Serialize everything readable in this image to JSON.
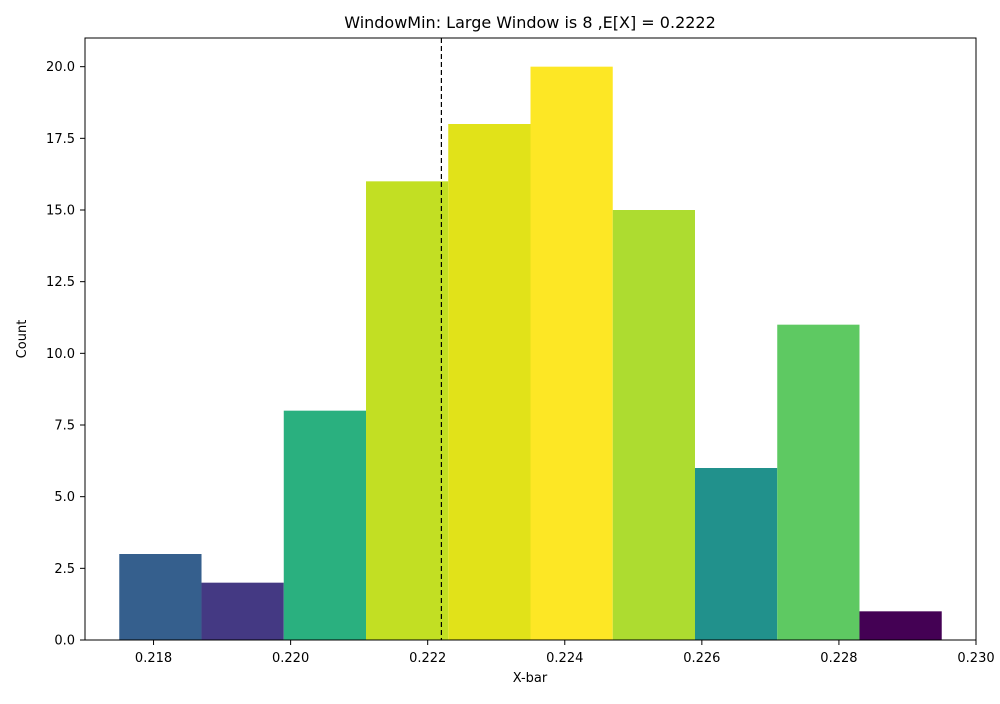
{
  "chart_data": {
    "type": "bar",
    "title": "WindowMin: Large Window is 8 ,E[X] = 0.2222",
    "xlabel": "X-bar",
    "ylabel": "Count",
    "xlim": [
      0.217,
      0.23
    ],
    "ylim": [
      0,
      21
    ],
    "x_ticks": [
      "0.218",
      "0.220",
      "0.222",
      "0.224",
      "0.226",
      "0.228",
      "0.230"
    ],
    "y_ticks": [
      "0.0",
      "2.5",
      "5.0",
      "7.5",
      "10.0",
      "12.5",
      "15.0",
      "17.5",
      "20.0"
    ],
    "bin_edges": [
      0.2175,
      0.2187,
      0.2199,
      0.2211,
      0.2223,
      0.2235,
      0.2247,
      0.2259,
      0.2271,
      0.2283,
      0.2295
    ],
    "values": [
      3,
      2,
      8,
      16,
      18,
      20,
      15,
      6,
      11,
      1
    ],
    "colors": [
      "#355f8d",
      "#443983",
      "#2ab07f",
      "#c2df23",
      "#e1e219",
      "#fde725",
      "#addc30",
      "#21918c",
      "#5ec962",
      "#440154"
    ],
    "reference_line": {
      "x": 0.2222,
      "style": "dashed",
      "color": "#000000"
    },
    "grid": false,
    "legend": "none"
  }
}
